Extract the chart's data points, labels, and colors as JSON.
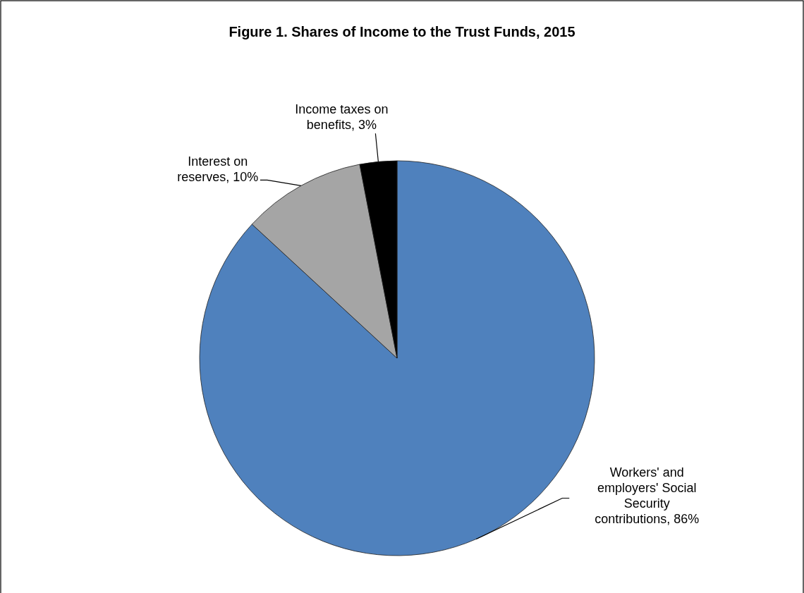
{
  "chart_data": {
    "type": "pie",
    "title": "Figure 1. Shares of Income to the Trust Funds, 2015",
    "categories": [
      "Workers' and employers' Social Security contributions",
      "Interest on reserves",
      "Income taxes on benefits"
    ],
    "values": [
      86,
      10,
      3
    ],
    "value_labels": [
      "86%",
      "10%",
      "3%"
    ],
    "colors": [
      "#4f81bd",
      "#a5a5a5",
      "#000000"
    ]
  }
}
